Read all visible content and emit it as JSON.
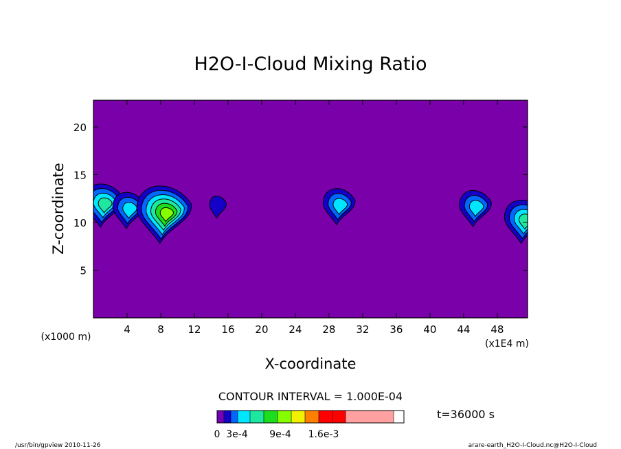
{
  "chart_data": {
    "type": "contour",
    "title": "H2O-I-Cloud Mixing Ratio",
    "xlabel": "X-coordinate",
    "ylabel": "Z-coordinate",
    "x_axis": {
      "ticks": [
        4,
        8,
        12,
        16,
        20,
        24,
        28,
        32,
        36,
        40,
        44,
        48
      ],
      "range": [
        0,
        51.6
      ],
      "unit_left": "(x1000 m)",
      "unit_right": "(x1E4 m)"
    },
    "y_axis": {
      "ticks": [
        5,
        10,
        15,
        20
      ],
      "range": [
        0,
        22.8
      ]
    },
    "contour_interval": "CONTOUR INTERVAL = 1.000E-04",
    "time_label": "t=36000 s",
    "colorbar": {
      "labels": [
        "0",
        "3e-4",
        "9e-4",
        "1.6e-3"
      ],
      "colors": [
        "#7300b6",
        "#1500c8",
        "#0068ff",
        "#00e6ff",
        "#1ee8a0",
        "#1edd1e",
        "#85ff00",
        "#f0f000",
        "#ff8000",
        "#ff0000",
        "#ff0000",
        "#ffa1a1"
      ]
    },
    "background_color": "#7a00aa",
    "clouds": [
      {
        "x": 1.2,
        "z": 12.2,
        "peak_level": 4
      },
      {
        "x": 4.2,
        "z": 11.6,
        "peak_level": 3
      },
      {
        "x": 8.4,
        "z": 11.4,
        "peak_level": 6
      },
      {
        "x": 14.8,
        "z": 11.8,
        "peak_level": 1
      },
      {
        "x": 29.2,
        "z": 12.0,
        "peak_level": 3
      },
      {
        "x": 45.4,
        "z": 11.8,
        "peak_level": 3
      },
      {
        "x": 51.2,
        "z": 10.5,
        "peak_level": 4
      }
    ]
  },
  "footer": {
    "left": "/usr/bin/gpview  2010-11-26",
    "right": "arare-earth_H2O-I-Cloud.nc@H2O-I-Cloud"
  }
}
